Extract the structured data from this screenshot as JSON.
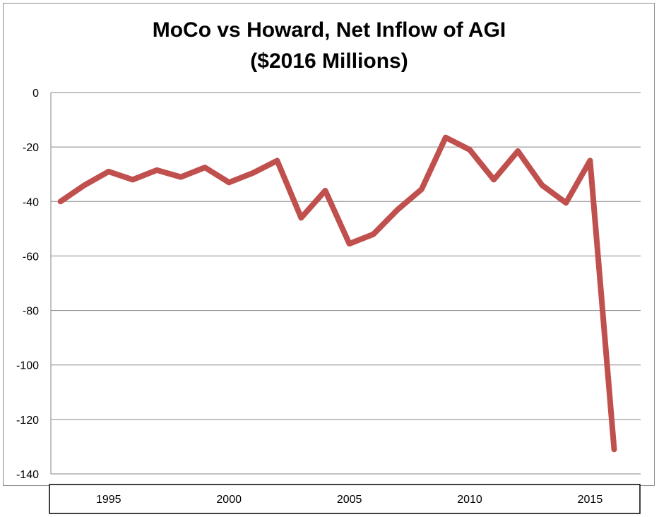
{
  "chart_data": {
    "type": "line",
    "title": "MoCo vs Howard, Net Inflow of AGI",
    "subtitle": "($2016 Millions)",
    "xlabel": "",
    "ylabel": "",
    "ylim": [
      -140,
      0
    ],
    "yticks": [
      0,
      -20,
      -40,
      -60,
      -80,
      -100,
      -120,
      -140
    ],
    "xlim": [
      1992.6,
      2017.1
    ],
    "xticks": [
      1995,
      2000,
      2005,
      2010,
      2015
    ],
    "grid": true,
    "legend": "none",
    "colors": {
      "series": "#c0504d",
      "grid": "#868686"
    },
    "series": [
      {
        "x": [
          1993,
          1994,
          1995,
          1996,
          1997,
          1998,
          1999,
          2000,
          2001,
          2002,
          2003,
          2004,
          2005,
          2006,
          2007,
          2008,
          2009,
          2010,
          2011,
          2012,
          2013,
          2014,
          2015,
          2016
        ],
        "values": [
          -40,
          -34,
          -29,
          -32,
          -28.5,
          -31,
          -27.5,
          -33,
          -29.5,
          -25,
          -46,
          -36,
          -55.5,
          -52,
          -43,
          -35.5,
          -16.5,
          -21,
          -32,
          -21.5,
          -34,
          -40.5,
          -25,
          -131
        ]
      }
    ]
  }
}
